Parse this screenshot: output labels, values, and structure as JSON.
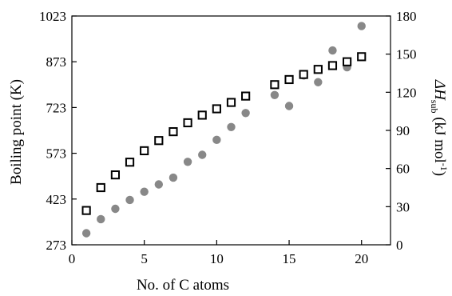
{
  "chart_data": {
    "type": "scatter",
    "xlabel": "No. of C atoms",
    "ylabel_left": "Boiling point (K)",
    "ylabel_right": {
      "prefix": "ΔH",
      "subscript": "sub",
      "unit_pre": " (kJ mol",
      "unit_sup": "-1",
      "unit_post": ")"
    },
    "xlim": [
      0,
      22
    ],
    "ylim_left": [
      273,
      1023
    ],
    "ylim_right": [
      0,
      180
    ],
    "xticks": [
      0,
      5,
      10,
      15,
      20
    ],
    "yticks_left": [
      273,
      423,
      573,
      723,
      873,
      1023
    ],
    "yticks_right": [
      0,
      30,
      60,
      90,
      120,
      150,
      180
    ],
    "grid": false,
    "colors": {
      "boiling_point": "#888888",
      "delta_h": "#000000"
    },
    "series": [
      {
        "axis": "left",
        "marker": "filled-circle",
        "x": [
          1,
          2,
          3,
          4,
          5,
          6,
          7,
          8,
          9,
          10,
          11,
          12,
          14,
          15,
          16,
          17,
          18,
          19,
          20
        ],
        "y": [
          311,
          357,
          391,
          420,
          447,
          471,
          493,
          545,
          568,
          617,
          659,
          705,
          764,
          728,
          828,
          806,
          910,
          855,
          990
        ]
      },
      {
        "axis": "right",
        "marker": "open-square",
        "x": [
          1,
          2,
          3,
          4,
          5,
          6,
          7,
          8,
          9,
          10,
          11,
          12,
          14,
          15,
          16,
          17,
          18,
          19,
          20
        ],
        "y": [
          27,
          45,
          55,
          65,
          74,
          82,
          89,
          96,
          102,
          107,
          112,
          117,
          126,
          130,
          134,
          138,
          141,
          144,
          148
        ]
      }
    ]
  }
}
